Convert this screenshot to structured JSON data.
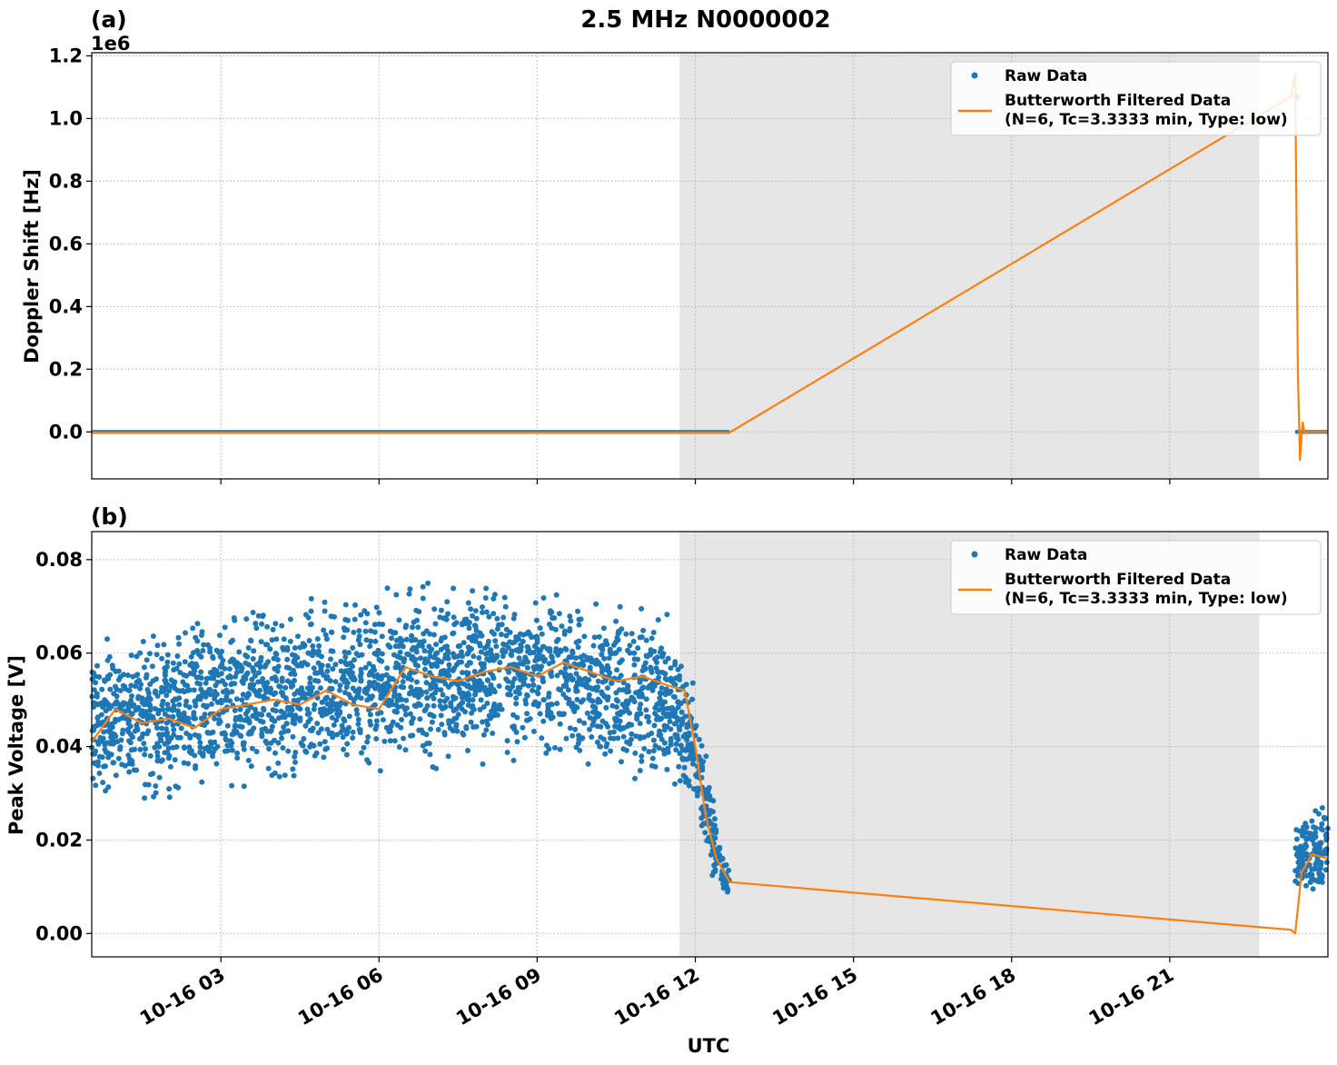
{
  "figure": {
    "suptitle": "2.5 MHz N0000002",
    "shared_xlabel": "UTC",
    "x_tick_labels": [
      "10-16 03",
      "10-16 06",
      "10-16 09",
      "10-16 12",
      "10-16 15",
      "10-16 18",
      "10-16 21"
    ],
    "colors": {
      "raw": "#1f77b4",
      "filtered": "#ff7f0e",
      "shade": "#e6e6e6",
      "grid": "#b0b0b0"
    }
  },
  "chart_data": [
    {
      "type": "scatter",
      "panel_label": "(a)",
      "title": "",
      "xlabel": "",
      "ylabel": "Doppler Shift [Hz]",
      "y_offset_label": "1e6",
      "xlim_hours": [
        0.55,
        24.0
      ],
      "ylim": [
        -150000,
        1210000
      ],
      "y_ticks": [
        0,
        200000,
        400000,
        600000,
        800000,
        1000000,
        1200000
      ],
      "y_tick_labels": [
        "0.0",
        "0.2",
        "0.4",
        "0.6",
        "0.8",
        "1.0",
        "1.2"
      ],
      "shaded_interval_hours": [
        11.7,
        22.7
      ],
      "grid": true,
      "legend": {
        "placement": "top-right",
        "entries": [
          "Raw Data",
          "Butterworth Filtered Data",
          "(N=6, Tc=3.3333 min, Type: low)"
        ]
      },
      "series": [
        {
          "name": "Raw Data",
          "style": "markers",
          "segments": [
            {
              "x_range_hours": [
                0.55,
                12.65
              ],
              "y_min": -6000,
              "y_max": 6000
            },
            {
              "x_range_hours": [
                23.38,
                24.0
              ],
              "y_min": -6000,
              "y_max": 6000
            }
          ],
          "outlier_points": [
            [
              23.4,
              1070000
            ]
          ]
        },
        {
          "name": "Butterworth Filtered Data",
          "style": "line",
          "x": [
            0.55,
            12.65,
            23.3,
            23.38,
            23.43,
            23.47,
            23.52,
            23.56,
            23.6,
            24.0
          ],
          "y": [
            -2000,
            -2000,
            1070000,
            1140000,
            200000,
            -90000,
            30000,
            -5000,
            0,
            0
          ]
        }
      ]
    },
    {
      "type": "scatter",
      "panel_label": "(b)",
      "title": "",
      "xlabel": "UTC",
      "ylabel": "Peak Voltage [V]",
      "xlim_hours": [
        0.55,
        24.0
      ],
      "ylim": [
        -0.005,
        0.086
      ],
      "y_ticks": [
        0.0,
        0.02,
        0.04,
        0.06,
        0.08
      ],
      "y_tick_labels": [
        "0.00",
        "0.02",
        "0.04",
        "0.06",
        "0.08"
      ],
      "shaded_interval_hours": [
        11.7,
        22.7
      ],
      "grid": true,
      "legend": {
        "placement": "top-right",
        "entries": [
          "Raw Data",
          "Butterworth Filtered Data",
          "(N=6, Tc=3.3333 min, Type: low)"
        ]
      },
      "series": [
        {
          "name": "Raw Data",
          "style": "markers",
          "band_envelope": {
            "x_hours": [
              0.55,
              1.5,
              2.5,
              3.5,
              4.5,
              5.5,
              6.5,
              7.5,
              8.5,
              9.5,
              10.5,
              11.5,
              12.0,
              12.3,
              12.65
            ],
            "y_low": [
              0.025,
              0.024,
              0.027,
              0.028,
              0.028,
              0.031,
              0.032,
              0.034,
              0.035,
              0.034,
              0.032,
              0.03,
              0.02,
              0.01,
              0.006
            ],
            "y_high": [
              0.066,
              0.067,
              0.071,
              0.073,
              0.073,
              0.076,
              0.076,
              0.078,
              0.077,
              0.076,
              0.074,
              0.071,
              0.058,
              0.032,
              0.014
            ]
          },
          "tail_segment": {
            "x_range_hours": [
              23.38,
              24.0
            ],
            "y_low": 0.008,
            "y_high": 0.027
          }
        },
        {
          "name": "Butterworth Filtered Data",
          "style": "line",
          "x": [
            0.55,
            1.0,
            1.5,
            2.0,
            2.5,
            3.0,
            3.5,
            4.0,
            4.5,
            5.0,
            5.5,
            6.0,
            6.5,
            7.0,
            7.5,
            8.0,
            8.5,
            9.0,
            9.5,
            10.0,
            10.5,
            11.0,
            11.5,
            11.8,
            12.0,
            12.2,
            12.4,
            12.65,
            23.3,
            23.38,
            23.5,
            23.7,
            24.0
          ],
          "y": [
            0.041,
            0.048,
            0.045,
            0.046,
            0.044,
            0.048,
            0.049,
            0.05,
            0.049,
            0.052,
            0.049,
            0.048,
            0.057,
            0.055,
            0.054,
            0.056,
            0.057,
            0.055,
            0.058,
            0.056,
            0.054,
            0.055,
            0.053,
            0.052,
            0.04,
            0.025,
            0.016,
            0.011,
            0.0008,
            0.0,
            0.013,
            0.017,
            0.016
          ]
        }
      ]
    }
  ]
}
